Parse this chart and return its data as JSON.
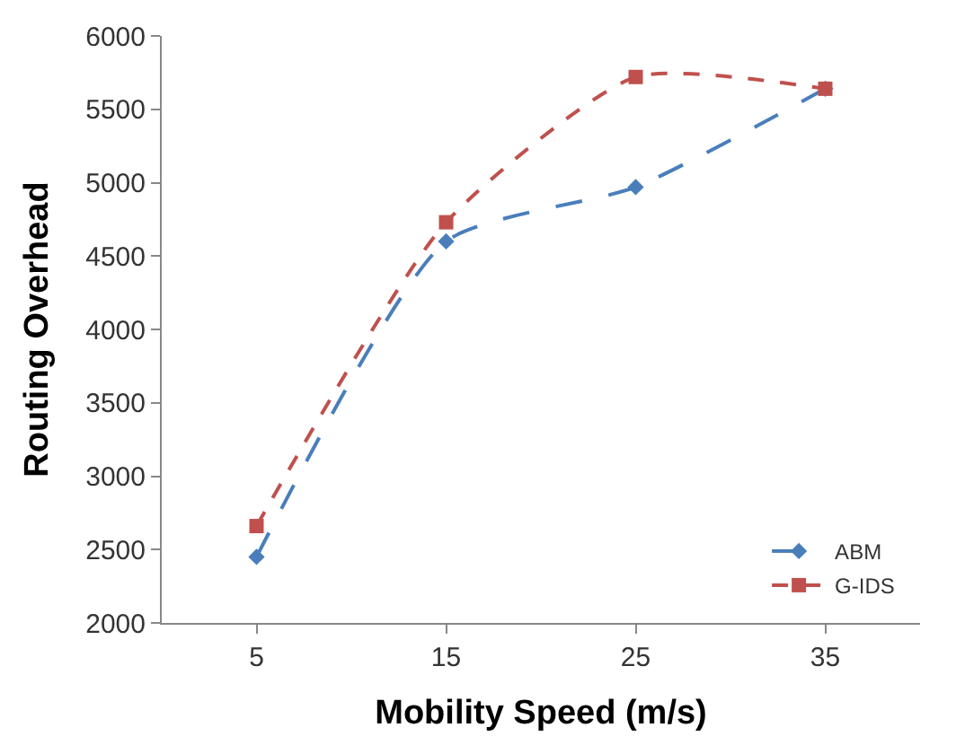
{
  "chart_data": {
    "type": "line",
    "xlabel": "Mobility Speed (m/s)",
    "ylabel": "Routing Overhead",
    "categories": [
      "5",
      "15",
      "25",
      "35"
    ],
    "series": [
      {
        "name": "ABM",
        "color": "#4a7ebb",
        "values": [
          2450,
          4600,
          4970,
          5640
        ],
        "marker": "diamond",
        "line_style": "dashed"
      },
      {
        "name": "G-IDS",
        "color": "#c0504d",
        "values": [
          2660,
          4730,
          5720,
          5640
        ],
        "marker": "square",
        "line_style": "dotted"
      }
    ],
    "ylim": [
      2000,
      6000
    ],
    "yticks": [
      2000,
      2500,
      3000,
      3500,
      4000,
      4500,
      5000,
      5500,
      6000
    ],
    "legend": "bottom right"
  }
}
